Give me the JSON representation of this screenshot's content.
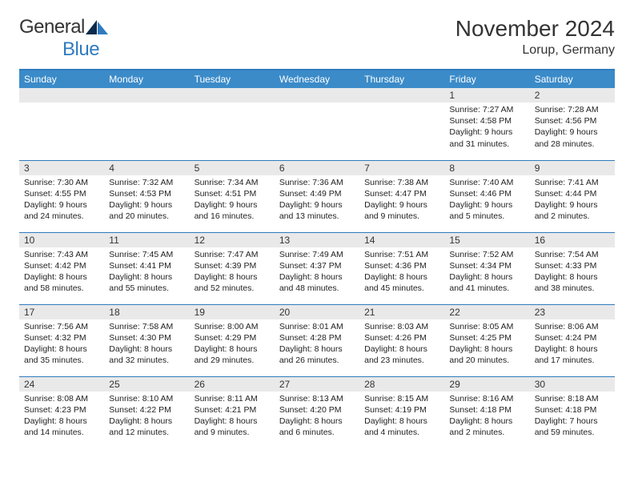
{
  "logo": {
    "word1": "General",
    "word2": "Blue"
  },
  "title": "November 2024",
  "location": "Lorup, Germany",
  "weekdays": [
    "Sunday",
    "Monday",
    "Tuesday",
    "Wednesday",
    "Thursday",
    "Friday",
    "Saturday"
  ],
  "colors": {
    "header_bg": "#3b8bc9",
    "rule": "#2f7bbf",
    "daynum_bg": "#e9e9e9",
    "logo_blue": "#2f7bbf",
    "text": "#333333"
  },
  "typography": {
    "title_size_pt": 21,
    "location_size_pt": 12,
    "weekday_size_pt": 9,
    "daynum_size_pt": 9,
    "body_size_pt": 8
  },
  "grid": {
    "weeks": [
      [
        {
          "n": "",
          "lines": []
        },
        {
          "n": "",
          "lines": []
        },
        {
          "n": "",
          "lines": []
        },
        {
          "n": "",
          "lines": []
        },
        {
          "n": "",
          "lines": []
        },
        {
          "n": "1",
          "lines": [
            "Sunrise: 7:27 AM",
            "Sunset: 4:58 PM",
            "Daylight: 9 hours and 31 minutes."
          ]
        },
        {
          "n": "2",
          "lines": [
            "Sunrise: 7:28 AM",
            "Sunset: 4:56 PM",
            "Daylight: 9 hours and 28 minutes."
          ]
        }
      ],
      [
        {
          "n": "3",
          "lines": [
            "Sunrise: 7:30 AM",
            "Sunset: 4:55 PM",
            "Daylight: 9 hours and 24 minutes."
          ]
        },
        {
          "n": "4",
          "lines": [
            "Sunrise: 7:32 AM",
            "Sunset: 4:53 PM",
            "Daylight: 9 hours and 20 minutes."
          ]
        },
        {
          "n": "5",
          "lines": [
            "Sunrise: 7:34 AM",
            "Sunset: 4:51 PM",
            "Daylight: 9 hours and 16 minutes."
          ]
        },
        {
          "n": "6",
          "lines": [
            "Sunrise: 7:36 AM",
            "Sunset: 4:49 PM",
            "Daylight: 9 hours and 13 minutes."
          ]
        },
        {
          "n": "7",
          "lines": [
            "Sunrise: 7:38 AM",
            "Sunset: 4:47 PM",
            "Daylight: 9 hours and 9 minutes."
          ]
        },
        {
          "n": "8",
          "lines": [
            "Sunrise: 7:40 AM",
            "Sunset: 4:46 PM",
            "Daylight: 9 hours and 5 minutes."
          ]
        },
        {
          "n": "9",
          "lines": [
            "Sunrise: 7:41 AM",
            "Sunset: 4:44 PM",
            "Daylight: 9 hours and 2 minutes."
          ]
        }
      ],
      [
        {
          "n": "10",
          "lines": [
            "Sunrise: 7:43 AM",
            "Sunset: 4:42 PM",
            "Daylight: 8 hours and 58 minutes."
          ]
        },
        {
          "n": "11",
          "lines": [
            "Sunrise: 7:45 AM",
            "Sunset: 4:41 PM",
            "Daylight: 8 hours and 55 minutes."
          ]
        },
        {
          "n": "12",
          "lines": [
            "Sunrise: 7:47 AM",
            "Sunset: 4:39 PM",
            "Daylight: 8 hours and 52 minutes."
          ]
        },
        {
          "n": "13",
          "lines": [
            "Sunrise: 7:49 AM",
            "Sunset: 4:37 PM",
            "Daylight: 8 hours and 48 minutes."
          ]
        },
        {
          "n": "14",
          "lines": [
            "Sunrise: 7:51 AM",
            "Sunset: 4:36 PM",
            "Daylight: 8 hours and 45 minutes."
          ]
        },
        {
          "n": "15",
          "lines": [
            "Sunrise: 7:52 AM",
            "Sunset: 4:34 PM",
            "Daylight: 8 hours and 41 minutes."
          ]
        },
        {
          "n": "16",
          "lines": [
            "Sunrise: 7:54 AM",
            "Sunset: 4:33 PM",
            "Daylight: 8 hours and 38 minutes."
          ]
        }
      ],
      [
        {
          "n": "17",
          "lines": [
            "Sunrise: 7:56 AM",
            "Sunset: 4:32 PM",
            "Daylight: 8 hours and 35 minutes."
          ]
        },
        {
          "n": "18",
          "lines": [
            "Sunrise: 7:58 AM",
            "Sunset: 4:30 PM",
            "Daylight: 8 hours and 32 minutes."
          ]
        },
        {
          "n": "19",
          "lines": [
            "Sunrise: 8:00 AM",
            "Sunset: 4:29 PM",
            "Daylight: 8 hours and 29 minutes."
          ]
        },
        {
          "n": "20",
          "lines": [
            "Sunrise: 8:01 AM",
            "Sunset: 4:28 PM",
            "Daylight: 8 hours and 26 minutes."
          ]
        },
        {
          "n": "21",
          "lines": [
            "Sunrise: 8:03 AM",
            "Sunset: 4:26 PM",
            "Daylight: 8 hours and 23 minutes."
          ]
        },
        {
          "n": "22",
          "lines": [
            "Sunrise: 8:05 AM",
            "Sunset: 4:25 PM",
            "Daylight: 8 hours and 20 minutes."
          ]
        },
        {
          "n": "23",
          "lines": [
            "Sunrise: 8:06 AM",
            "Sunset: 4:24 PM",
            "Daylight: 8 hours and 17 minutes."
          ]
        }
      ],
      [
        {
          "n": "24",
          "lines": [
            "Sunrise: 8:08 AM",
            "Sunset: 4:23 PM",
            "Daylight: 8 hours and 14 minutes."
          ]
        },
        {
          "n": "25",
          "lines": [
            "Sunrise: 8:10 AM",
            "Sunset: 4:22 PM",
            "Daylight: 8 hours and 12 minutes."
          ]
        },
        {
          "n": "26",
          "lines": [
            "Sunrise: 8:11 AM",
            "Sunset: 4:21 PM",
            "Daylight: 8 hours and 9 minutes."
          ]
        },
        {
          "n": "27",
          "lines": [
            "Sunrise: 8:13 AM",
            "Sunset: 4:20 PM",
            "Daylight: 8 hours and 6 minutes."
          ]
        },
        {
          "n": "28",
          "lines": [
            "Sunrise: 8:15 AM",
            "Sunset: 4:19 PM",
            "Daylight: 8 hours and 4 minutes."
          ]
        },
        {
          "n": "29",
          "lines": [
            "Sunrise: 8:16 AM",
            "Sunset: 4:18 PM",
            "Daylight: 8 hours and 2 minutes."
          ]
        },
        {
          "n": "30",
          "lines": [
            "Sunrise: 8:18 AM",
            "Sunset: 4:18 PM",
            "Daylight: 7 hours and 59 minutes."
          ]
        }
      ]
    ]
  }
}
